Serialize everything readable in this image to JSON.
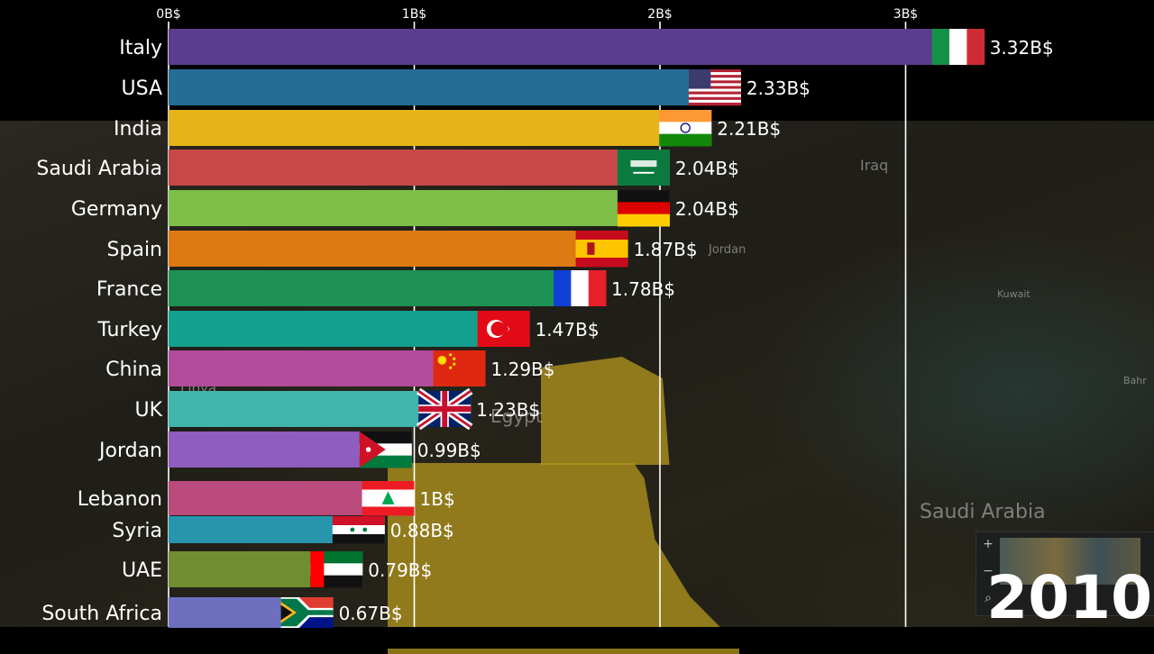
{
  "year": "2010",
  "map_labels": {
    "egypt": "Egypt",
    "jordan": "Jordan",
    "iraq": "Iraq",
    "kuwait": "Kuwait",
    "saudi_arabia": "Saudi Arabia",
    "libya": "Libya",
    "bahrain": "Bahr"
  },
  "chart_data": {
    "type": "bar",
    "orientation": "horizontal",
    "unit_suffix": "B$",
    "xlim": [
      0,
      3.4
    ],
    "xticks": [
      {
        "value": 0,
        "label": "0B$"
      },
      {
        "value": 1,
        "label": "1B$"
      },
      {
        "value": 2,
        "label": "2B$"
      },
      {
        "value": 3,
        "label": "3B$"
      }
    ],
    "grid": true,
    "bars": [
      {
        "name": "Italy",
        "value": 3.32,
        "label": "3.32B$",
        "color": "#5b3d8e",
        "flag": "italy-flag"
      },
      {
        "name": "USA",
        "value": 2.33,
        "label": "2.33B$",
        "color": "#256d94",
        "flag": "usa-flag"
      },
      {
        "name": "India",
        "value": 2.21,
        "label": "2.21B$",
        "color": "#e6b418",
        "flag": "india-flag"
      },
      {
        "name": "Saudi Arabia",
        "value": 2.04,
        "label": "2.04B$",
        "color": "#c84848",
        "flag": "saudi-arabia-flag"
      },
      {
        "name": "Germany",
        "value": 2.04,
        "label": "2.04B$",
        "color": "#7dbf48",
        "flag": "germany-flag"
      },
      {
        "name": "Spain",
        "value": 1.87,
        "label": "1.87B$",
        "color": "#de7a12",
        "flag": "spain-flag"
      },
      {
        "name": "France",
        "value": 1.78,
        "label": "1.78B$",
        "color": "#1d9252",
        "flag": "france-flag"
      },
      {
        "name": "Turkey",
        "value": 1.47,
        "label": "1.47B$",
        "color": "#13a08e",
        "flag": "turkey-flag"
      },
      {
        "name": "China",
        "value": 1.29,
        "label": "1.29B$",
        "color": "#b24c9a",
        "flag": "china-flag"
      },
      {
        "name": "UK",
        "value": 1.23,
        "label": "1.23B$",
        "color": "#3fb5ac",
        "flag": "uk-flag"
      },
      {
        "name": "Jordan",
        "value": 0.99,
        "label": "0.99B$",
        "color": "#8f5cbf",
        "flag": "jordan-flag"
      },
      {
        "name": "Lebanon",
        "value": 1,
        "label": "1B$",
        "color": "#bb4a7d",
        "flag": "lebanon-flag"
      },
      {
        "name": "Syria",
        "value": 0.88,
        "label": "0.88B$",
        "color": "#2796ad",
        "flag": "syria-flag"
      },
      {
        "name": "UAE",
        "value": 0.79,
        "label": "0.79B$",
        "color": "#6f8e32",
        "flag": "uae-flag"
      },
      {
        "name": "South Africa",
        "value": 0.67,
        "label": "0.67B$",
        "color": "#6f6fc0",
        "flag": "south-africa-flag"
      }
    ]
  }
}
